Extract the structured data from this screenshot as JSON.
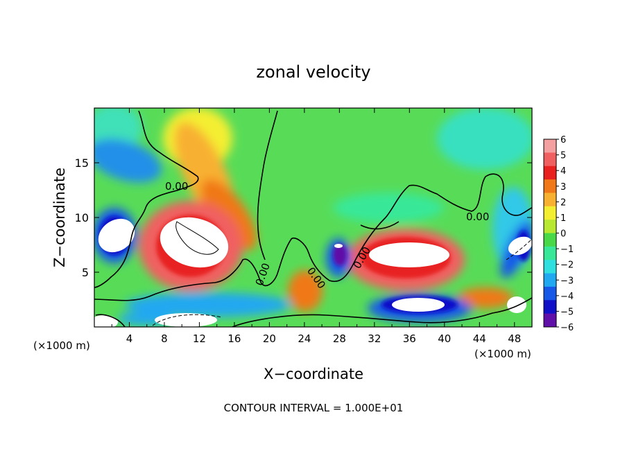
{
  "chart_data": {
    "type": "heatmap",
    "title": "zonal velocity",
    "xlabel": "X−coordinate",
    "ylabel": "Z−coordinate",
    "x_unit_left": "(×1000 m)",
    "x_unit_right": "(×1000 m)",
    "xlim": [
      0,
      50
    ],
    "ylim": [
      0,
      20
    ],
    "x_ticks": [
      "4",
      "8",
      "12",
      "16",
      "20",
      "24",
      "28",
      "32",
      "36",
      "40",
      "44",
      "48"
    ],
    "y_ticks": [
      "5",
      "10",
      "15"
    ],
    "colorbar": {
      "range": [
        -6,
        6
      ],
      "labels": [
        "6",
        "5",
        "4",
        "3",
        "2",
        "1",
        "0",
        "−1",
        "−2",
        "−3",
        "−4",
        "−5",
        "−6"
      ],
      "colors": [
        "#f4a0a0",
        "#f06060",
        "#e82020",
        "#f07818",
        "#f8b030",
        "#f4ee30",
        "#b8e830",
        "#48d848",
        "#38e898",
        "#30e0e0",
        "#20a8f0",
        "#1858e8",
        "#1010c8",
        "#6010a8"
      ]
    },
    "contour_labels": [
      "0.00",
      "0.00",
      "0.00",
      "0.00",
      "0.00"
    ],
    "footer": "CONTOUR INTERVAL = 1.000E+01"
  }
}
